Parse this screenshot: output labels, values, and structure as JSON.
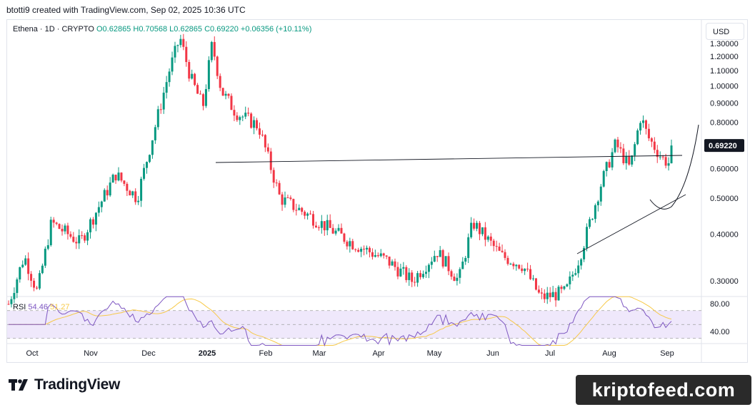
{
  "header": {
    "text": "btotti9 created with TradingView.com, Sep 02, 2025 10:36 UTC"
  },
  "legend": {
    "symbol": "Ethena · 1D · CRYPTO",
    "open": "O0.62865",
    "high": "H0.70568",
    "low": "L0.62865",
    "close": "C0.69220",
    "change": "+0.06356 (+10.11%)"
  },
  "currency": "USD",
  "rsi_legend": {
    "name": "RSI",
    "value": "54.46",
    "ma": "51.27"
  },
  "brand": "TradingView",
  "watermark": "kriptofeed.com",
  "colors": {
    "up": "#089981",
    "down": "#f23645",
    "rsi": "#7e57c2",
    "rsi_ma": "#f7c948",
    "band": "#efe8fb"
  },
  "chart_data": [
    {
      "type": "candlestick",
      "title": "Ethena · 1D · CRYPTO",
      "x_ticks": [
        "Oct",
        "Nov",
        "Dec",
        "2025",
        "Feb",
        "Mar",
        "Apr",
        "May",
        "Jun",
        "Jul",
        "Aug",
        "Sep"
      ],
      "y_ticks": [
        "1.30000",
        "1.20000",
        "1.10000",
        "1.00000",
        "0.90000",
        "0.80000",
        "0.70000",
        "0.60000",
        "0.50000",
        "0.40000",
        "0.30000"
      ],
      "y_scale": "log",
      "last_price": "0.69220",
      "path_anchors": [
        [
          0,
          0.26
        ],
        [
          22,
          0.35
        ],
        [
          40,
          0.28
        ],
        [
          60,
          0.43
        ],
        [
          100,
          0.38
        ],
        [
          150,
          0.58
        ],
        [
          180,
          0.5
        ],
        [
          225,
          1.1
        ],
        [
          240,
          1.35
        ],
        [
          255,
          1.05
        ],
        [
          272,
          0.88
        ],
        [
          285,
          1.3
        ],
        [
          298,
          0.97
        ],
        [
          318,
          0.85
        ],
        [
          350,
          0.78
        ],
        [
          380,
          0.5
        ],
        [
          420,
          0.45
        ],
        [
          480,
          0.38
        ],
        [
          530,
          0.34
        ],
        [
          565,
          0.3
        ],
        [
          600,
          0.36
        ],
        [
          630,
          0.3
        ],
        [
          650,
          0.43
        ],
        [
          690,
          0.35
        ],
        [
          720,
          0.33
        ],
        [
          745,
          0.27
        ],
        [
          780,
          0.28
        ],
        [
          800,
          0.35
        ],
        [
          830,
          0.55
        ],
        [
          850,
          0.7
        ],
        [
          870,
          0.6
        ],
        [
          885,
          0.83
        ],
        [
          895,
          0.73
        ],
        [
          915,
          0.64
        ],
        [
          925,
          0.62
        ],
        [
          935,
          0.63
        ],
        [
          940,
          0.692
        ]
      ],
      "annotations": {
        "resistance_line": [
          [
            0.8,
            "Jan"
          ],
          [
            0.83,
            "Aug"
          ]
        ],
        "rising_trendline": "from 0.42 (Jul) to 0.67 (Sep)",
        "projected_curve": "rounded base rising from 0.62 to 0.95"
      }
    },
    {
      "type": "line",
      "title": "RSI",
      "series": [
        {
          "name": "RSI",
          "last": 54.46
        },
        {
          "name": "MA",
          "last": 51.27
        }
      ],
      "y_ticks": [
        "80.00",
        "40.00"
      ],
      "band": [
        30,
        70
      ]
    }
  ]
}
